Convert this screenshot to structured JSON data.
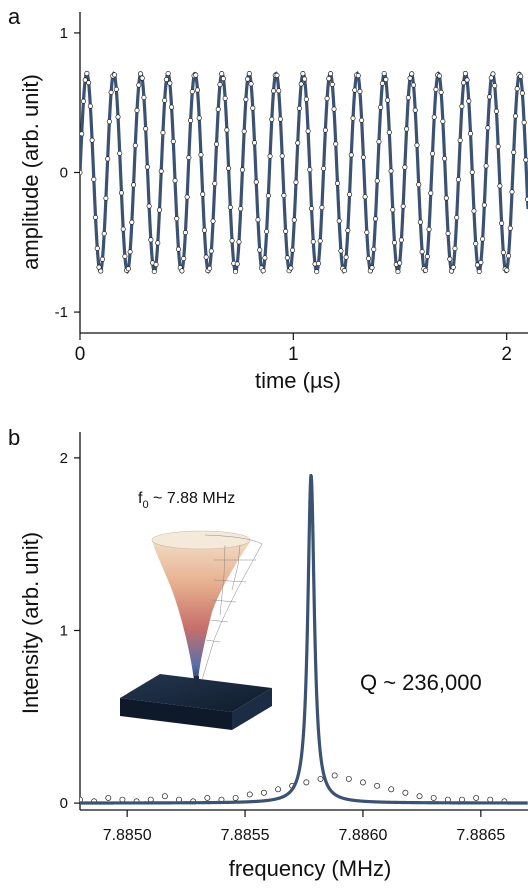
{
  "colors": {
    "fit": "#3b5272",
    "marker_edge": "#222222",
    "axis": "#111111"
  },
  "chart_data": [
    {
      "panel_label": "a",
      "type": "line",
      "xlabel": "time (µs)",
      "ylabel": "amplitude (arb. unit)",
      "xlim": [
        0,
        2.1
      ],
      "ylim": [
        -1.15,
        1.15
      ],
      "xticks": [
        0,
        1,
        2
      ],
      "xtick_labels": [
        "0",
        "1",
        "2"
      ],
      "yticks": [
        1,
        0,
        -1
      ],
      "ytick_labels": [
        "1",
        "0",
        "-1"
      ],
      "series": [
        {
          "kind": "fit_line",
          "model": "damped_sinusoid",
          "amplitude": 0.71,
          "frequency_MHz": 7.8858,
          "offset": 0,
          "x_range": [
            0,
            2.1
          ],
          "color": "#3b5272"
        },
        {
          "kind": "data_points",
          "marker": "open-circle",
          "sampling_interval_us": 0.0081,
          "x_range": [
            0,
            2.1
          ]
        }
      ]
    },
    {
      "panel_label": "b",
      "type": "line",
      "xlabel": "frequency (MHz)",
      "ylabel": "Intensity (arb. unit)",
      "xlim": [
        7.8848,
        7.8867
      ],
      "ylim": [
        -0.04,
        2.15
      ],
      "xticks": [
        7.885,
        7.8855,
        7.886,
        7.8865
      ],
      "xtick_labels": [
        "7.8850",
        "7.8855",
        "7.8860",
        "7.8865"
      ],
      "yticks": [
        2,
        1,
        0
      ],
      "ytick_labels": [
        "2",
        "1",
        "0"
      ],
      "series": [
        {
          "kind": "fit_line",
          "model": "lorentzian",
          "center_MHz": 7.88578,
          "peak": 1.9,
          "fwhm_MHz": 3.34e-05,
          "color": "#3b5272"
        },
        {
          "kind": "data_points",
          "marker": "open-circle",
          "x": [
            7.8848,
            7.88486,
            7.88492,
            7.88498,
            7.88504,
            7.8851,
            7.88516,
            7.88522,
            7.88528,
            7.88534,
            7.8854,
            7.88546,
            7.88552,
            7.88558,
            7.88564,
            7.8857,
            7.88576,
            7.88582,
            7.88588,
            7.88594,
            7.886,
            7.88606,
            7.88612,
            7.88618,
            7.88624,
            7.8863,
            7.88636,
            7.88642,
            7.88648,
            7.88654,
            7.8866
          ],
          "y": [
            0.02,
            0.01,
            0.03,
            0.02,
            0.01,
            0.02,
            0.04,
            0.02,
            0.01,
            0.03,
            0.02,
            0.03,
            0.05,
            0.06,
            0.08,
            0.1,
            0.12,
            0.14,
            0.16,
            0.14,
            0.12,
            0.1,
            0.08,
            0.06,
            0.04,
            0.03,
            0.02,
            0.02,
            0.03,
            0.02,
            0.01
          ]
        }
      ],
      "annotations": {
        "quality": "Q ~ 236,000",
        "f0_main": "f",
        "f0_sub": "0",
        "f0_rest": " ~ 7.88 MHz"
      }
    }
  ]
}
